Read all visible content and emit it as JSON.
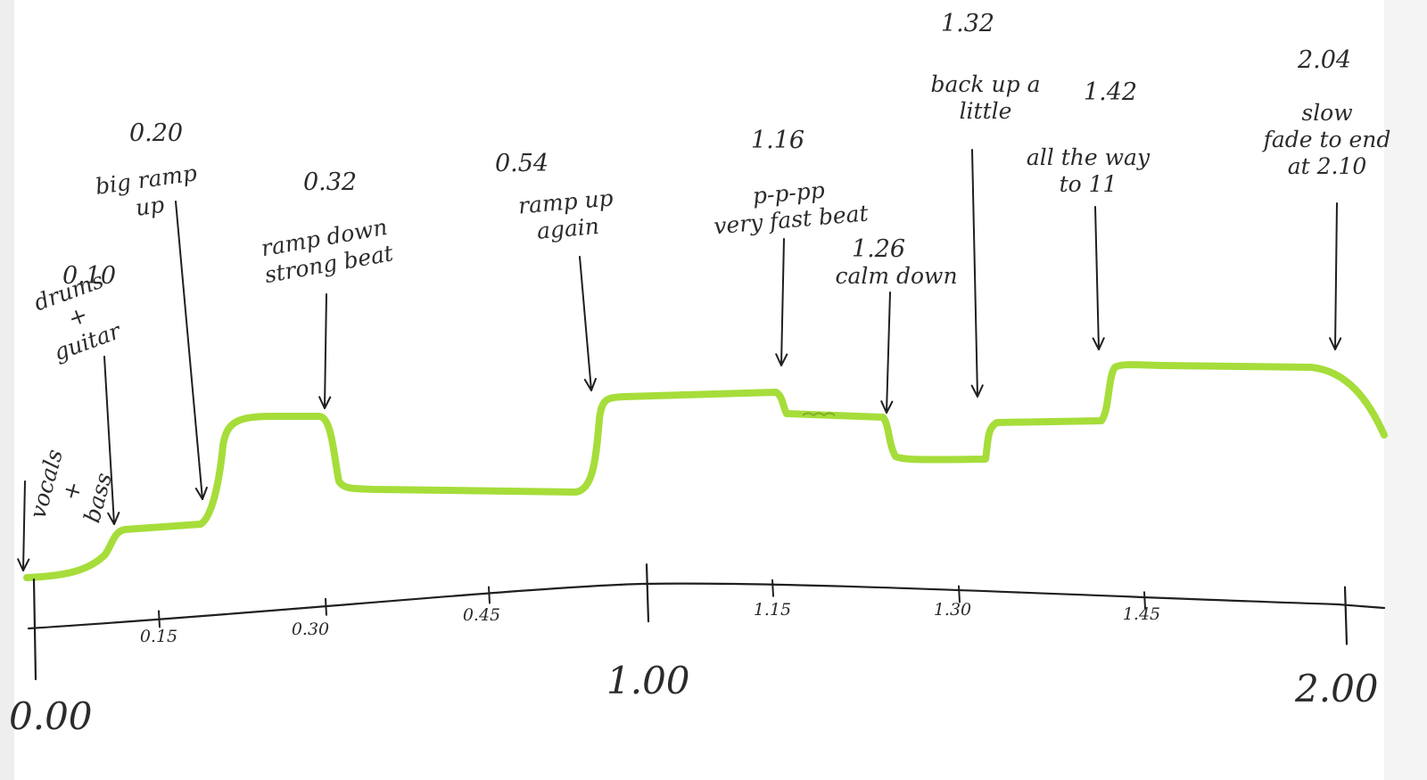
{
  "timeline": {
    "axis_start": "0.00",
    "minor_ticks": [
      {
        "value": 15,
        "label": "0.15"
      },
      {
        "value": 30,
        "label": "0.30"
      },
      {
        "value": 45,
        "label": "0.45"
      },
      {
        "value": 75,
        "label": "1.15"
      },
      {
        "value": 90,
        "label": "1.30"
      },
      {
        "value": 105,
        "label": "1.45"
      }
    ],
    "major_ticks": [
      {
        "value": 0,
        "label": "0.00"
      },
      {
        "value": 60,
        "label": "1.00"
      },
      {
        "value": 120,
        "label": "2.00"
      }
    ]
  },
  "intensity_color": "#a6dd3a",
  "annotations": [
    {
      "time": "",
      "lines": [
        "vocals",
        "+",
        "bass"
      ]
    },
    {
      "time": "0.10",
      "lines": [
        "drums",
        "+",
        "guitar"
      ]
    },
    {
      "time": "0.20",
      "lines": [
        "big ramp",
        "up"
      ]
    },
    {
      "time": "0.32",
      "lines": [
        "ramp down",
        "strong beat"
      ]
    },
    {
      "time": "0.54",
      "lines": [
        "ramp up",
        "again"
      ]
    },
    {
      "time": "1.16",
      "lines": [
        "p-p-pp",
        "very fast beat"
      ]
    },
    {
      "time": "1.26",
      "lines": [
        "calm down"
      ]
    },
    {
      "time": "1.32",
      "lines": [
        "back up a",
        "little"
      ]
    },
    {
      "time": "1.42",
      "lines": [
        "all the way",
        "to 11"
      ]
    },
    {
      "time": "2.04",
      "lines": [
        "slow",
        "fade to end",
        "at 2.10"
      ]
    }
  ]
}
